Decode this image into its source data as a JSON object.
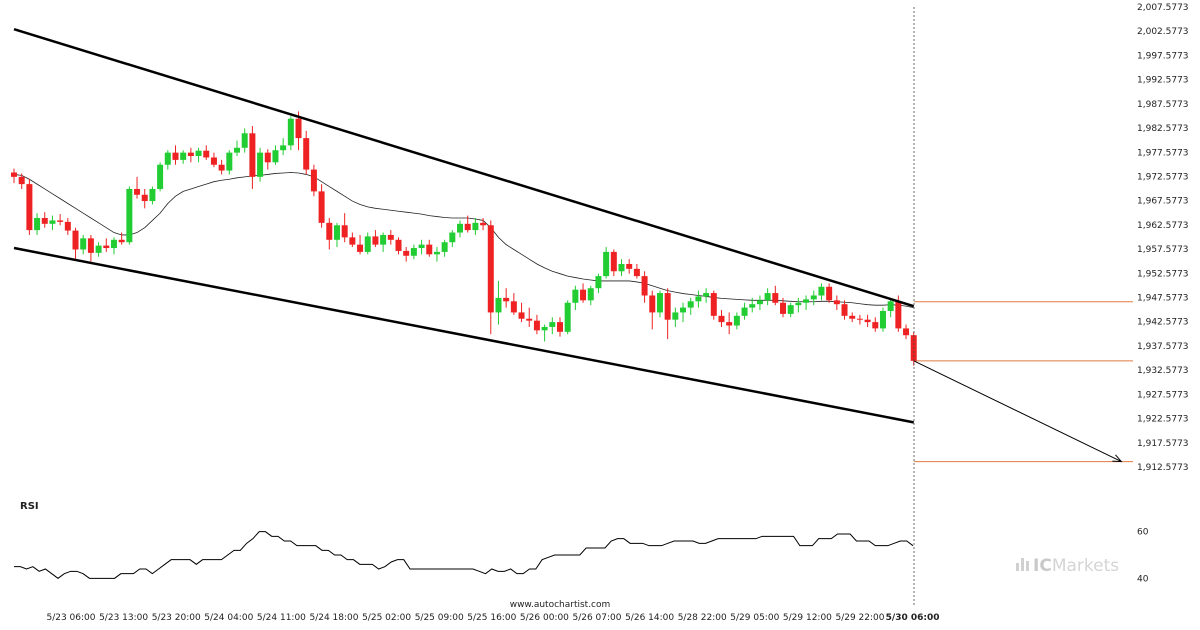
{
  "watermark": "www.autochartist.com",
  "brand": {
    "part1": "IC",
    "part2": "Markets",
    "color": "#cfcfcf"
  },
  "rsi_label": "RSI",
  "colors": {
    "up": "#22cc33",
    "down": "#ee2222",
    "channel": "#000000",
    "ma": "#222222",
    "levels": "#e07a40"
  },
  "chart_data": {
    "type": "candlestick",
    "price_axis": {
      "ticks": [
        "2,007.5773",
        "2,002.5773",
        "1,997.5773",
        "1,992.5773",
        "1,987.5773",
        "1,982.5773",
        "1,977.5773",
        "1,972.5773",
        "1,967.5773",
        "1,962.5773",
        "1,957.5773",
        "1,952.5773",
        "1,947.5773",
        "1,942.5773",
        "1,937.5773",
        "1,932.5773",
        "1,927.5773",
        "1,922.5773",
        "1,917.5773",
        "1,912.5773"
      ],
      "min": 1912.5773,
      "max": 2007.5773,
      "step": 5
    },
    "time_axis": {
      "ticks": [
        "5/23 06:00",
        "5/23 13:00",
        "5/23 20:00",
        "5/24 04:00",
        "5/24 11:00",
        "5/24 18:00",
        "5/25 02:00",
        "5/25 09:00",
        "5/25 16:00",
        "5/26 00:00",
        "5/26 07:00",
        "5/26 14:00",
        "5/28 22:00",
        "5/29 05:00",
        "5/29 12:00",
        "5/29 22:00",
        "5/30 06:00"
      ],
      "current_label": "5/30 06:00"
    },
    "candles": [
      [
        1973.4,
        1974.2,
        1971.2,
        1972.5
      ],
      [
        1972.5,
        1973.2,
        1970.0,
        1971.0
      ],
      [
        1971.0,
        1972.0,
        1960.5,
        1961.5
      ],
      [
        1961.5,
        1965.0,
        1960.5,
        1964.0
      ],
      [
        1964.0,
        1965.2,
        1962.0,
        1962.8
      ],
      [
        1962.8,
        1964.5,
        1961.5,
        1963.5
      ],
      [
        1963.5,
        1964.8,
        1962.5,
        1963.2
      ],
      [
        1963.2,
        1964.0,
        1960.5,
        1961.4
      ],
      [
        1961.4,
        1962.0,
        1955.5,
        1957.5
      ],
      [
        1957.5,
        1960.5,
        1956.5,
        1959.8
      ],
      [
        1959.8,
        1960.5,
        1955.0,
        1956.8
      ],
      [
        1956.8,
        1959.0,
        1956.0,
        1958.3
      ],
      [
        1958.3,
        1959.8,
        1957.0,
        1957.8
      ],
      [
        1957.8,
        1960.0,
        1956.5,
        1959.5
      ],
      [
        1959.5,
        1961.0,
        1958.5,
        1959.0
      ],
      [
        1959.0,
        1970.5,
        1958.5,
        1970.0
      ],
      [
        1970.0,
        1972.5,
        1968.0,
        1968.8
      ],
      [
        1968.8,
        1970.0,
        1966.0,
        1967.5
      ],
      [
        1967.5,
        1970.5,
        1966.8,
        1970.0
      ],
      [
        1970.0,
        1975.5,
        1969.5,
        1975.0
      ],
      [
        1975.0,
        1978.0,
        1974.0,
        1977.5
      ],
      [
        1977.5,
        1979.0,
        1975.0,
        1976.0
      ],
      [
        1976.0,
        1978.0,
        1975.2,
        1977.5
      ],
      [
        1977.5,
        1978.5,
        1975.5,
        1976.8
      ],
      [
        1976.8,
        1978.5,
        1975.5,
        1977.9
      ],
      [
        1977.9,
        1979.0,
        1976.0,
        1976.5
      ],
      [
        1976.5,
        1977.5,
        1974.5,
        1975.0
      ],
      [
        1975.0,
        1976.0,
        1973.0,
        1973.8
      ],
      [
        1973.8,
        1978.0,
        1973.0,
        1977.5
      ],
      [
        1977.5,
        1980.0,
        1976.8,
        1978.5
      ],
      [
        1978.5,
        1982.5,
        1977.5,
        1981.5
      ],
      [
        1981.5,
        1983.0,
        1970.0,
        1972.5
      ],
      [
        1972.5,
        1978.5,
        1971.5,
        1977.5
      ],
      [
        1977.5,
        1978.2,
        1974.0,
        1975.5
      ],
      [
        1975.5,
        1979.0,
        1975.0,
        1978.0
      ],
      [
        1978.0,
        1980.5,
        1977.0,
        1979.0
      ],
      [
        1979.0,
        1985.0,
        1978.0,
        1984.5
      ],
      [
        1984.5,
        1986.0,
        1978.0,
        1980.5
      ],
      [
        1980.5,
        1982.0,
        1973.0,
        1974.0
      ],
      [
        1974.0,
        1975.0,
        1968.5,
        1969.5
      ],
      [
        1969.5,
        1971.0,
        1962.0,
        1963.0
      ],
      [
        1963.0,
        1964.0,
        1957.5,
        1959.5
      ],
      [
        1959.5,
        1963.0,
        1958.0,
        1962.5
      ],
      [
        1962.5,
        1965.0,
        1959.0,
        1960.0
      ],
      [
        1960.0,
        1961.0,
        1958.0,
        1958.5
      ],
      [
        1958.5,
        1960.5,
        1956.5,
        1957.0
      ],
      [
        1957.0,
        1961.0,
        1956.5,
        1960.2
      ],
      [
        1960.2,
        1961.5,
        1958.0,
        1958.5
      ],
      [
        1958.5,
        1961.0,
        1957.0,
        1960.5
      ],
      [
        1960.5,
        1961.5,
        1958.5,
        1959.5
      ],
      [
        1959.5,
        1960.0,
        1956.5,
        1957.2
      ],
      [
        1957.2,
        1958.0,
        1955.0,
        1956.2
      ],
      [
        1956.2,
        1958.5,
        1955.5,
        1957.8
      ],
      [
        1957.8,
        1959.5,
        1956.5,
        1958.5
      ],
      [
        1958.5,
        1959.5,
        1956.0,
        1956.5
      ],
      [
        1956.5,
        1958.0,
        1955.0,
        1957.0
      ],
      [
        1957.0,
        1959.5,
        1956.0,
        1959.0
      ],
      [
        1959.0,
        1961.5,
        1958.0,
        1961.0
      ],
      [
        1961.0,
        1963.5,
        1960.0,
        1962.8
      ],
      [
        1962.8,
        1964.5,
        1961.0,
        1961.5
      ],
      [
        1961.5,
        1964.0,
        1960.5,
        1963.0
      ],
      [
        1963.0,
        1964.0,
        1961.5,
        1962.5
      ],
      [
        1962.5,
        1963.5,
        1940.0,
        1944.5
      ],
      [
        1944.5,
        1951.0,
        1942.0,
        1947.5
      ],
      [
        1947.5,
        1949.5,
        1945.5,
        1946.8
      ],
      [
        1946.8,
        1948.5,
        1944.0,
        1944.5
      ],
      [
        1944.5,
        1946.5,
        1942.5,
        1943.2
      ],
      [
        1943.2,
        1945.5,
        1941.5,
        1942.8
      ],
      [
        1942.8,
        1944.0,
        1940.0,
        1940.8
      ],
      [
        1940.8,
        1942.0,
        1938.5,
        1941.5
      ],
      [
        1941.5,
        1943.5,
        1940.0,
        1942.5
      ],
      [
        1942.5,
        1943.5,
        1939.5,
        1940.5
      ],
      [
        1940.5,
        1947.0,
        1940.0,
        1946.5
      ],
      [
        1946.5,
        1950.0,
        1945.0,
        1949.2
      ],
      [
        1949.2,
        1950.5,
        1946.5,
        1947.0
      ],
      [
        1947.0,
        1950.0,
        1946.0,
        1949.5
      ],
      [
        1949.5,
        1952.5,
        1948.5,
        1952.0
      ],
      [
        1952.0,
        1958.0,
        1951.5,
        1957.0
      ],
      [
        1957.0,
        1957.5,
        1952.0,
        1953.0
      ],
      [
        1953.0,
        1955.5,
        1952.0,
        1954.5
      ],
      [
        1954.5,
        1955.5,
        1952.5,
        1953.5
      ],
      [
        1953.5,
        1954.5,
        1951.5,
        1952.0
      ],
      [
        1952.0,
        1953.0,
        1946.5,
        1948.0
      ],
      [
        1948.0,
        1949.0,
        1941.0,
        1944.5
      ],
      [
        1944.5,
        1949.0,
        1943.5,
        1948.5
      ],
      [
        1948.5,
        1949.5,
        1939.0,
        1943.0
      ],
      [
        1943.0,
        1945.5,
        1941.5,
        1944.5
      ],
      [
        1944.5,
        1946.5,
        1942.5,
        1945.5
      ],
      [
        1945.5,
        1947.5,
        1944.0,
        1946.8
      ],
      [
        1946.8,
        1949.0,
        1945.5,
        1947.8
      ],
      [
        1947.8,
        1949.5,
        1946.5,
        1948.5
      ],
      [
        1948.5,
        1949.0,
        1943.0,
        1943.8
      ],
      [
        1943.8,
        1945.0,
        1941.5,
        1942.5
      ],
      [
        1942.5,
        1944.5,
        1940.0,
        1941.8
      ],
      [
        1941.8,
        1944.5,
        1941.0,
        1943.8
      ],
      [
        1943.8,
        1946.5,
        1943.0,
        1945.5
      ],
      [
        1945.5,
        1947.5,
        1944.5,
        1946.2
      ],
      [
        1946.2,
        1948.0,
        1945.0,
        1947.0
      ],
      [
        1947.0,
        1949.5,
        1946.0,
        1948.5
      ],
      [
        1948.5,
        1950.0,
        1946.0,
        1946.5
      ],
      [
        1946.5,
        1947.5,
        1943.5,
        1944.2
      ],
      [
        1944.2,
        1946.5,
        1943.5,
        1946.0
      ],
      [
        1946.0,
        1947.5,
        1944.5,
        1946.5
      ],
      [
        1946.5,
        1948.0,
        1945.0,
        1947.2
      ],
      [
        1947.2,
        1949.0,
        1946.0,
        1948.0
      ],
      [
        1948.0,
        1950.5,
        1947.0,
        1949.8
      ],
      [
        1949.8,
        1950.5,
        1946.5,
        1947.0
      ],
      [
        1947.0,
        1948.0,
        1945.0,
        1946.2
      ],
      [
        1946.2,
        1947.0,
        1943.0,
        1943.8
      ],
      [
        1943.8,
        1944.5,
        1942.5,
        1943.2
      ],
      [
        1943.2,
        1944.0,
        1942.0,
        1943.0
      ],
      [
        1943.0,
        1944.0,
        1941.5,
        1942.5
      ],
      [
        1942.5,
        1943.5,
        1940.5,
        1941.2
      ],
      [
        1941.2,
        1945.5,
        1940.5,
        1944.8
      ],
      [
        1944.8,
        1947.5,
        1943.5,
        1946.8
      ],
      [
        1946.8,
        1948.0,
        1940.5,
        1941.2
      ],
      [
        1941.2,
        1942.0,
        1939.0,
        1939.8
      ],
      [
        1939.8,
        1940.5,
        1933.5,
        1934.5
      ]
    ],
    "moving_average": [
      1973.0,
      1972.8,
      1972.0,
      1971.0,
      1970.0,
      1969.0,
      1968.0,
      1967.0,
      1966.0,
      1965.0,
      1964.0,
      1963.0,
      1962.0,
      1961.0,
      1960.5,
      1960.5,
      1961.0,
      1962.0,
      1963.5,
      1965.0,
      1967.0,
      1968.5,
      1969.5,
      1970.0,
      1970.5,
      1971.0,
      1971.5,
      1971.8,
      1972.0,
      1972.3,
      1972.5,
      1972.7,
      1972.8,
      1973.0,
      1973.2,
      1973.3,
      1973.4,
      1973.3,
      1973.0,
      1972.5,
      1971.5,
      1970.5,
      1969.5,
      1968.5,
      1967.5,
      1966.8,
      1966.3,
      1966.0,
      1965.8,
      1965.6,
      1965.4,
      1965.2,
      1965.0,
      1964.8,
      1964.5,
      1964.3,
      1964.1,
      1964.0,
      1964.0,
      1964.0,
      1963.8,
      1963.5,
      1962.0,
      1960.0,
      1958.5,
      1957.5,
      1956.5,
      1955.5,
      1954.5,
      1953.7,
      1953.0,
      1952.5,
      1952.0,
      1951.7,
      1951.4,
      1951.2,
      1951.0,
      1951.0,
      1951.0,
      1951.0,
      1951.0,
      1950.8,
      1950.5,
      1950.0,
      1949.5,
      1949.0,
      1948.7,
      1948.4,
      1948.2,
      1948.0,
      1947.8,
      1947.6,
      1947.4,
      1947.3,
      1947.2,
      1947.1,
      1947.0,
      1947.0,
      1947.0,
      1947.0,
      1946.9,
      1946.8,
      1946.7,
      1946.7,
      1946.7,
      1946.8,
      1946.8,
      1946.7,
      1946.6,
      1946.5,
      1946.3,
      1946.1,
      1946.0,
      1946.0,
      1946.1,
      1946.0,
      1945.8,
      1945.5
    ],
    "channel": {
      "upper": {
        "start": [
          0,
          2003.0
        ],
        "end": [
          117,
          1945.8
        ]
      },
      "lower": {
        "start": [
          0,
          1957.8
        ],
        "end": [
          117,
          1921.8
        ]
      }
    },
    "levels": [
      1946.7,
      1934.5,
      1913.7
    ],
    "projection": {
      "from": [
        117,
        1934.5
      ],
      "to": [
        144,
        1913.7
      ]
    },
    "rsi": {
      "axis_ticks": [
        60,
        40
      ],
      "min": 35,
      "max": 65,
      "values": [
        45,
        45,
        44,
        45,
        43,
        44,
        42,
        40,
        42,
        43,
        43,
        42,
        40,
        40,
        40,
        40,
        40,
        42,
        42,
        42,
        44,
        44,
        42,
        44,
        46,
        48,
        48,
        48,
        48,
        46,
        48,
        48,
        48,
        48,
        50,
        52,
        52,
        55,
        57,
        60,
        60,
        58,
        58,
        56,
        56,
        54,
        54,
        54,
        54,
        52,
        52,
        50,
        50,
        48,
        48,
        46,
        46,
        46,
        44,
        45,
        47,
        48,
        48,
        44,
        44,
        44,
        44,
        44,
        44,
        44,
        44,
        44,
        44,
        44,
        43,
        42,
        44,
        43,
        43,
        44,
        42,
        42,
        44,
        44,
        48,
        49,
        50,
        50,
        50,
        50,
        50,
        53,
        53,
        53,
        53,
        56,
        57,
        57,
        55,
        55,
        55,
        54,
        54,
        54,
        55,
        56,
        56,
        56,
        56,
        55,
        55,
        56,
        57,
        57,
        57,
        57,
        57,
        57,
        57,
        58,
        58,
        58,
        58,
        58,
        58,
        54,
        54,
        54,
        57,
        57,
        57,
        59,
        59,
        59,
        56,
        56,
        56,
        54,
        54,
        54,
        55,
        56,
        56,
        54
      ]
    }
  }
}
